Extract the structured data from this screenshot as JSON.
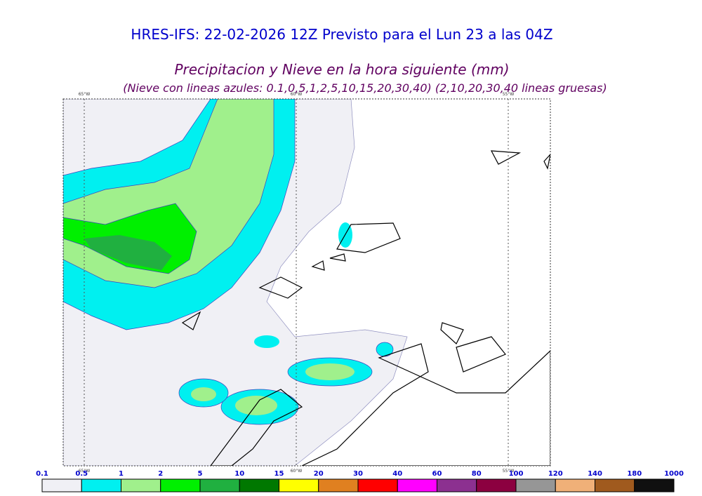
{
  "header": {
    "title": "HRES-IFS: 22-02-2026 12Z Previsto para el Lun 23 a las 04Z",
    "subtitle": "Precipitacion y Nieve en la hora siguiente (mm)",
    "note": "(Nieve con lineas azules: 0.1,0,5,1,2,5,10,15,20,30,40)  (2,10,20,30,40 lineas gruesas)"
  },
  "map": {
    "lon_labels": [
      "65°W",
      "60°W",
      "55°W"
    ]
  },
  "colorbar": {
    "labels": [
      "0.1",
      "0.5",
      "1",
      "2",
      "5",
      "10",
      "15",
      "20",
      "30",
      "40",
      "60",
      "80",
      "100",
      "120",
      "140",
      "180",
      "1000"
    ],
    "colors": [
      "#f0f0f5",
      "#00f0f0",
      "#a0f08c",
      "#00f000",
      "#20b040",
      "#007800",
      "#ffff00",
      "#e08020",
      "#ff0000",
      "#ff00ff",
      "#8c3090",
      "#8c0040",
      "#969696",
      "#f0b078",
      "#a05a1e",
      "#101010"
    ]
  }
}
